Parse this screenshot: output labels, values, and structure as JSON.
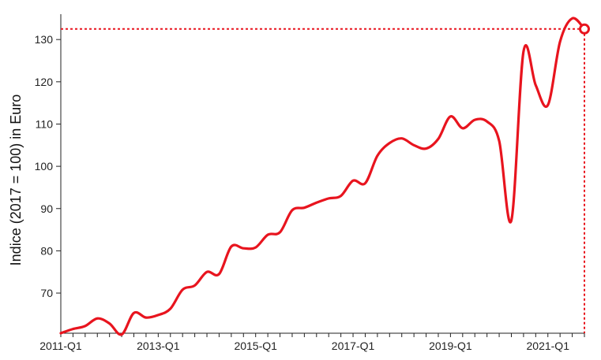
{
  "chart_data": {
    "type": "line",
    "title": "",
    "xlabel": "",
    "ylabel": "Indice (2017 = 100) in Euro",
    "x_tick_labels": [
      "2011-Q1",
      "2013-Q1",
      "2015-Q1",
      "2017-Q1",
      "2019-Q1",
      "2021-Q1"
    ],
    "y_ticks": [
      70,
      80,
      90,
      100,
      110,
      120,
      130
    ],
    "ylim": [
      60.5,
      136
    ],
    "grid": false,
    "line_color": "#e8141e",
    "reference_value": 132.5,
    "series": [
      {
        "x": [
          "2011-Q1",
          "2011-Q2",
          "2011-Q3",
          "2011-Q4",
          "2012-Q1",
          "2012-Q2",
          "2012-Q3",
          "2012-Q4",
          "2013-Q1",
          "2013-Q2",
          "2013-Q3",
          "2013-Q4",
          "2014-Q1",
          "2014-Q2",
          "2014-Q3",
          "2014-Q4",
          "2015-Q1",
          "2015-Q2",
          "2015-Q3",
          "2015-Q4",
          "2016-Q1",
          "2016-Q2",
          "2016-Q3",
          "2016-Q4",
          "2017-Q1",
          "2017-Q2",
          "2017-Q3",
          "2017-Q4",
          "2018-Q1",
          "2018-Q2",
          "2018-Q3",
          "2018-Q4",
          "2019-Q1",
          "2019-Q2",
          "2019-Q3",
          "2019-Q4",
          "2020-Q1",
          "2020-Q2",
          "2020-Q3",
          "2020-Q4",
          "2021-Q1",
          "2021-Q2",
          "2021-Q3",
          "2021-Q4"
        ],
        "values": [
          60.5,
          61.5,
          62.2,
          64.0,
          62.8,
          60.2,
          65.3,
          64.2,
          64.8,
          66.3,
          70.8,
          71.8,
          75.0,
          74.5,
          81.0,
          80.6,
          80.8,
          83.8,
          84.4,
          89.6,
          90.2,
          91.4,
          92.4,
          93.0,
          96.6,
          96.0,
          102.5,
          105.5,
          106.6,
          105.0,
          104.2,
          106.5,
          111.8,
          109.0,
          111.0,
          110.6,
          106.0,
          87.2,
          127.2,
          119.2,
          114.5,
          129.5,
          135.0,
          132.5
        ]
      }
    ]
  }
}
